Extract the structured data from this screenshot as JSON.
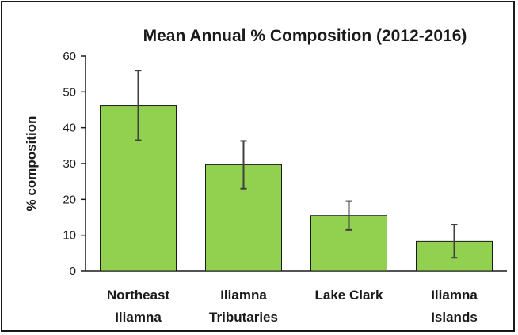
{
  "chart_data": {
    "type": "bar",
    "title": "Mean Annual % Composition (2012-2016)",
    "xlabel": "",
    "ylabel": "% composition",
    "ylim": [
      0,
      60
    ],
    "yticks": [
      0,
      10,
      20,
      30,
      40,
      50,
      60
    ],
    "categories": [
      [
        "Northeast",
        "Iliamna"
      ],
      [
        "Iliamna",
        "Tributaries"
      ],
      [
        "Lake Clark"
      ],
      [
        "Iliamna",
        "Islands"
      ]
    ],
    "values": [
      46.2,
      29.7,
      15.5,
      8.3
    ],
    "error_low": [
      36.5,
      23.0,
      11.5,
      3.7
    ],
    "error_high": [
      56.0,
      36.3,
      19.5,
      13.0
    ],
    "grid": false,
    "legend": "none",
    "colors": {
      "bar_fill": "#92d050",
      "bar_stroke": "#1a1a1a",
      "error_bar": "#404040",
      "axis": "#1a1a1a"
    }
  }
}
